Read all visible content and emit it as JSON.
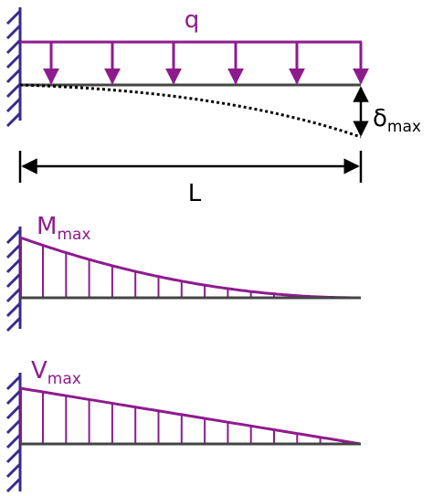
{
  "load": {
    "label": "q"
  },
  "deflection": {
    "symbol": "δ",
    "subscript": "max"
  },
  "span": {
    "label": "L"
  },
  "moment": {
    "symbol": "M",
    "subscript": "max"
  },
  "shear": {
    "symbol": "V",
    "subscript": "max"
  }
}
